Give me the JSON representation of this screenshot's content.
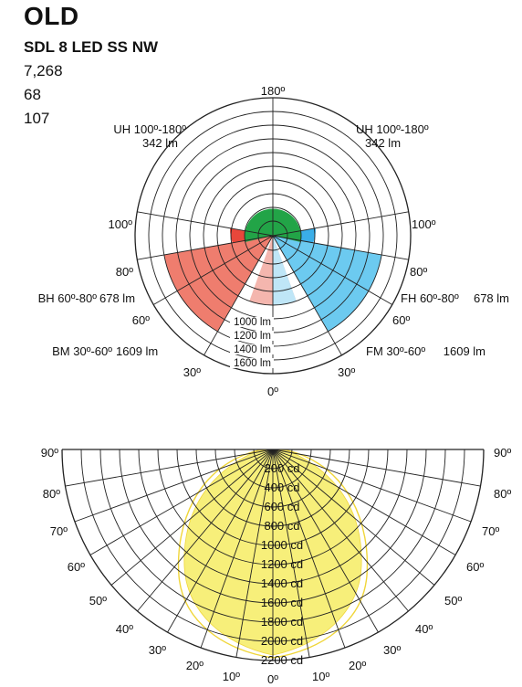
{
  "header": {
    "title": "OLD",
    "subtitle": "SDL 8 LED SS NW",
    "values": [
      "7,268",
      "68",
      "107"
    ]
  },
  "zonal": {
    "angle_labels": {
      "top": "180º",
      "upper_left": "100º",
      "upper_right": "100º",
      "left_80": "80º",
      "right_80": "80º",
      "left_60": "60º",
      "right_60": "60º",
      "left_30": "30º",
      "right_30": "30º",
      "bottom": "0º"
    },
    "zones": {
      "uh": {
        "name": "UH 100º-180º",
        "lumens": "342 lm",
        "color": "#22a447"
      },
      "bh": {
        "name": "BH 60º-80º",
        "lumens": "678 lm",
        "color": "#e8473b"
      },
      "fh": {
        "name": "FH 60º-80º",
        "lumens": "678 lm",
        "color": "#3aaee8"
      },
      "bm": {
        "name": "BM 30º-60º",
        "lumens": "1609 lm",
        "color": "#ef7d6e"
      },
      "fm": {
        "name": "FM 30º-60º",
        "lumens": "1609 lm",
        "color": "#6ccaf0"
      },
      "bl": {
        "color": "#f4b6ae"
      },
      "fl": {
        "color": "#bfe6f7"
      }
    },
    "ring_labels": [
      "1000 lm",
      "1200 lm",
      "1400 lm",
      "1600 lm"
    ]
  },
  "candela": {
    "ring_labels": [
      "200 cd",
      "400 cd",
      "600 cd",
      "800 cd",
      "1000 cd",
      "1200 cd",
      "1400 cd",
      "1600 cd",
      "1800 cd",
      "2000 cd",
      "2200 cd"
    ],
    "left_angles": [
      "90º",
      "80º",
      "70º",
      "60º",
      "50º",
      "40º",
      "30º",
      "20º",
      "10º"
    ],
    "right_angles": [
      "90º",
      "80º",
      "70º",
      "60º",
      "50º",
      "40º",
      "30º",
      "20º",
      "10º"
    ],
    "bottom_angle": "0º",
    "fill_color": "#f7ef7a",
    "outline_color": "#f0d63a"
  }
}
